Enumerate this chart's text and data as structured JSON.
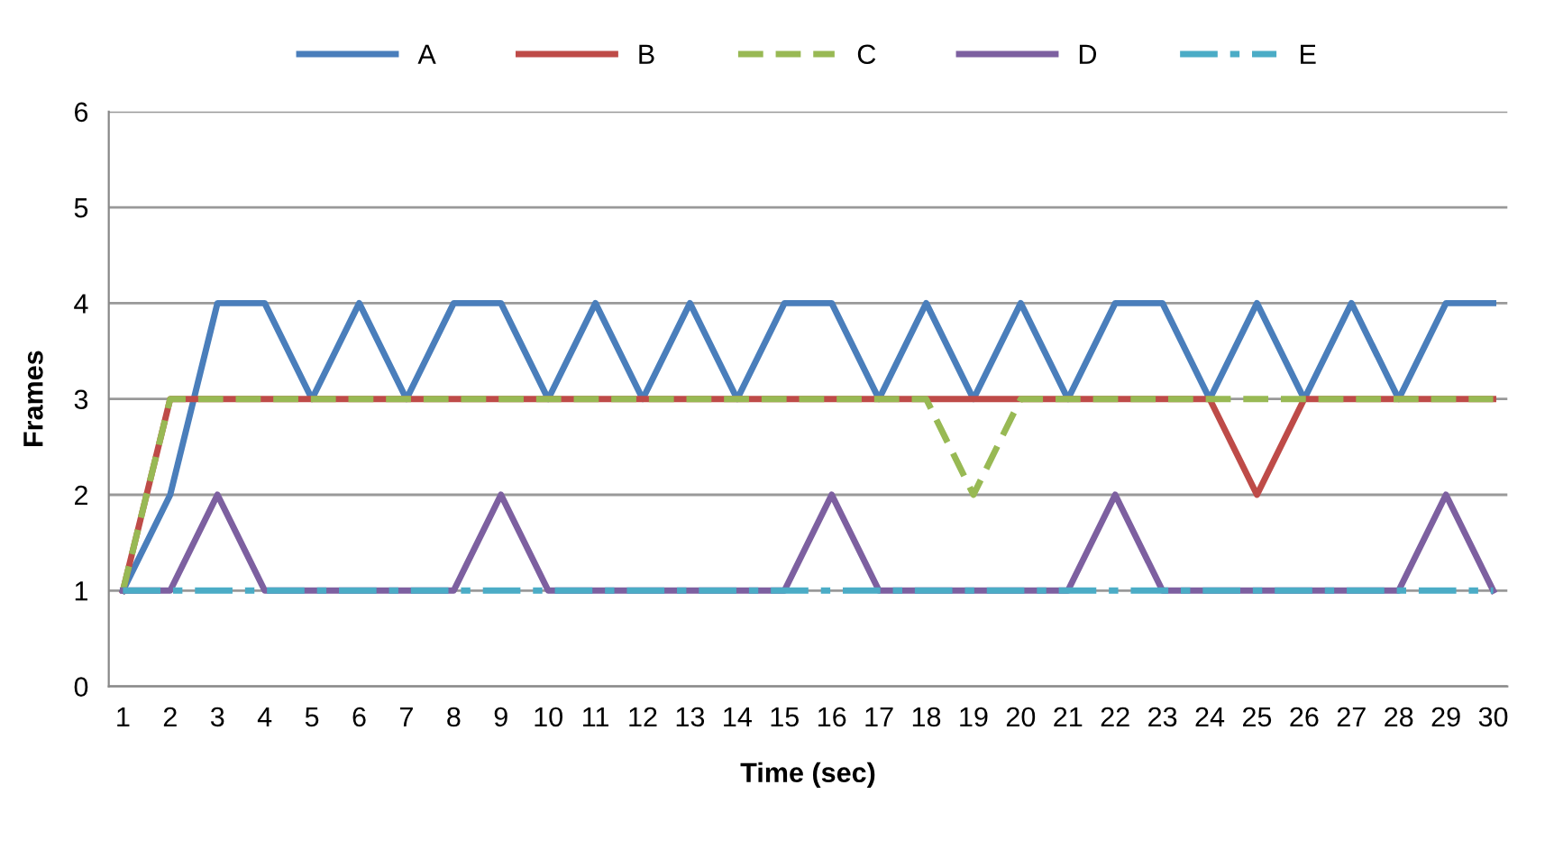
{
  "chart_data": {
    "type": "line",
    "xlabel": "Time (sec)",
    "ylabel": "Frames",
    "categories": [
      "1",
      "2",
      "3",
      "4",
      "5",
      "6",
      "7",
      "8",
      "9",
      "10",
      "11",
      "12",
      "13",
      "14",
      "15",
      "16",
      "17",
      "18",
      "19",
      "20",
      "21",
      "22",
      "23",
      "24",
      "25",
      "26",
      "27",
      "28",
      "29",
      "30"
    ],
    "series": [
      {
        "name": "A",
        "color": "#4a7ebb",
        "line_style": "solid",
        "values": [
          1,
          2,
          4,
          4,
          3,
          4,
          3,
          4,
          4,
          3,
          4,
          3,
          4,
          3,
          4,
          4,
          3,
          4,
          3,
          4,
          3,
          4,
          4,
          3,
          4,
          3,
          4,
          3,
          4,
          4
        ]
      },
      {
        "name": "B",
        "color": "#be4b48",
        "line_style": "solid",
        "values": [
          1,
          3,
          3,
          3,
          3,
          3,
          3,
          3,
          3,
          3,
          3,
          3,
          3,
          3,
          3,
          3,
          3,
          3,
          3,
          3,
          3,
          3,
          3,
          3,
          2,
          3,
          3,
          3,
          3,
          3
        ]
      },
      {
        "name": "C",
        "color": "#98b954",
        "line_style": "dashed",
        "values": [
          1,
          3,
          3,
          3,
          3,
          3,
          3,
          3,
          3,
          3,
          3,
          3,
          3,
          3,
          3,
          3,
          3,
          3,
          2,
          3,
          3,
          3,
          3,
          3,
          3,
          3,
          3,
          3,
          3,
          3
        ]
      },
      {
        "name": "D",
        "color": "#7d60a0",
        "line_style": "solid",
        "values": [
          1,
          1,
          2,
          1,
          1,
          1,
          1,
          1,
          2,
          1,
          1,
          1,
          1,
          1,
          1,
          2,
          1,
          1,
          1,
          1,
          1,
          2,
          1,
          1,
          1,
          1,
          1,
          1,
          2,
          1
        ]
      },
      {
        "name": "E",
        "color": "#4bacc6",
        "line_style": "dashdot",
        "values": [
          1,
          1,
          1,
          1,
          1,
          1,
          1,
          1,
          1,
          1,
          1,
          1,
          1,
          1,
          1,
          1,
          1,
          1,
          1,
          1,
          1,
          1,
          1,
          1,
          1,
          1,
          1,
          1,
          1,
          1
        ]
      }
    ],
    "ylim": [
      0,
      6
    ],
    "yticks": [
      0,
      1,
      2,
      3,
      4,
      5,
      6
    ],
    "grid": "y",
    "legend": "top",
    "marker": "none"
  }
}
